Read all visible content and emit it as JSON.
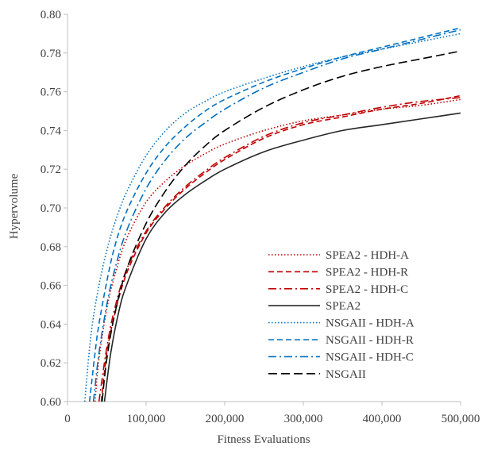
{
  "chart_data": {
    "type": "line",
    "title": "",
    "xlabel": "Fitness Evaluations",
    "ylabel": "Hypervolume",
    "xlim": [
      0,
      500000
    ],
    "ylim": [
      0.6,
      0.8
    ],
    "xticks": [
      0,
      100000,
      200000,
      300000,
      400000,
      500000
    ],
    "xtick_labels": [
      "0",
      "100,000",
      "200,000",
      "300,000",
      "400,000",
      "500,000"
    ],
    "yticks": [
      0.6,
      0.62,
      0.64,
      0.66,
      0.68,
      0.7,
      0.72,
      0.74,
      0.76,
      0.78,
      0.8
    ],
    "ytick_labels": [
      "0.60",
      "0.62",
      "0.64",
      "0.66",
      "0.68",
      "0.70",
      "0.72",
      "0.74",
      "0.76",
      "0.78",
      "0.80"
    ],
    "grid": false,
    "legend_position": "bottom-right",
    "series": [
      {
        "name": "SPEA2 - HDH-A",
        "color": "#c00000",
        "dash": "dotted",
        "x": [
          35000,
          40000,
          50000,
          60000,
          75000,
          100000,
          125000,
          150000,
          175000,
          200000,
          250000,
          300000,
          350000,
          400000,
          450000,
          500000
        ],
        "y": [
          0.6,
          0.622,
          0.648,
          0.665,
          0.684,
          0.703,
          0.714,
          0.722,
          0.728,
          0.733,
          0.74,
          0.745,
          0.748,
          0.751,
          0.753,
          0.756
        ]
      },
      {
        "name": "SPEA2 - HDH-R",
        "color": "#c00000",
        "dash": "dashed",
        "x": [
          43000,
          50000,
          60000,
          75000,
          100000,
          125000,
          150000,
          175000,
          200000,
          250000,
          300000,
          350000,
          400000,
          450000,
          500000
        ],
        "y": [
          0.6,
          0.625,
          0.645,
          0.666,
          0.687,
          0.7,
          0.71,
          0.718,
          0.725,
          0.736,
          0.743,
          0.747,
          0.751,
          0.754,
          0.758
        ]
      },
      {
        "name": "SPEA2 - HDH-C",
        "color": "#c00000",
        "dash": "dashdot",
        "x": [
          40000,
          50000,
          60000,
          75000,
          100000,
          125000,
          150000,
          175000,
          200000,
          250000,
          300000,
          350000,
          400000,
          450000,
          500000
        ],
        "y": [
          0.6,
          0.628,
          0.648,
          0.668,
          0.688,
          0.701,
          0.711,
          0.719,
          0.726,
          0.737,
          0.744,
          0.748,
          0.752,
          0.755,
          0.757
        ]
      },
      {
        "name": "SPEA2",
        "color": "#262626",
        "dash": "solid",
        "x": [
          47000,
          55000,
          65000,
          75000,
          100000,
          125000,
          150000,
          175000,
          200000,
          250000,
          300000,
          350000,
          400000,
          450000,
          500000
        ],
        "y": [
          0.6,
          0.625,
          0.646,
          0.66,
          0.684,
          0.698,
          0.707,
          0.714,
          0.72,
          0.729,
          0.735,
          0.74,
          0.743,
          0.746,
          0.749
        ]
      },
      {
        "name": "NSGAII - HDH-A",
        "color": "#0070c0",
        "dash": "dotted",
        "x": [
          22000,
          30000,
          40000,
          50000,
          60000,
          75000,
          100000,
          125000,
          150000,
          175000,
          200000,
          250000,
          300000,
          350000,
          400000,
          450000,
          500000
        ],
        "y": [
          0.6,
          0.635,
          0.66,
          0.678,
          0.692,
          0.708,
          0.727,
          0.74,
          0.749,
          0.755,
          0.76,
          0.767,
          0.773,
          0.778,
          0.782,
          0.786,
          0.79
        ]
      },
      {
        "name": "NSGAII - HDH-R",
        "color": "#0070c0",
        "dash": "dashed",
        "x": [
          28000,
          35000,
          40000,
          50000,
          60000,
          75000,
          100000,
          125000,
          150000,
          175000,
          200000,
          250000,
          300000,
          350000,
          400000,
          450000,
          500000
        ],
        "y": [
          0.6,
          0.625,
          0.64,
          0.662,
          0.68,
          0.698,
          0.718,
          0.732,
          0.742,
          0.75,
          0.756,
          0.765,
          0.772,
          0.778,
          0.783,
          0.788,
          0.793
        ]
      },
      {
        "name": "NSGAII - HDH-C",
        "color": "#0070c0",
        "dash": "dashdot",
        "x": [
          33000,
          40000,
          50000,
          60000,
          75000,
          100000,
          125000,
          150000,
          175000,
          200000,
          250000,
          300000,
          350000,
          400000,
          450000,
          500000
        ],
        "y": [
          0.6,
          0.625,
          0.65,
          0.668,
          0.688,
          0.71,
          0.725,
          0.736,
          0.744,
          0.751,
          0.762,
          0.77,
          0.777,
          0.782,
          0.787,
          0.792
        ]
      },
      {
        "name": "NSGAII",
        "color": "#000000",
        "dash": "longdash",
        "x": [
          44000,
          50000,
          60000,
          75000,
          100000,
          125000,
          150000,
          175000,
          200000,
          250000,
          300000,
          350000,
          400000,
          450000,
          500000
        ],
        "y": [
          0.6,
          0.622,
          0.645,
          0.668,
          0.692,
          0.709,
          0.722,
          0.732,
          0.74,
          0.752,
          0.761,
          0.768,
          0.773,
          0.777,
          0.781
        ]
      }
    ]
  }
}
